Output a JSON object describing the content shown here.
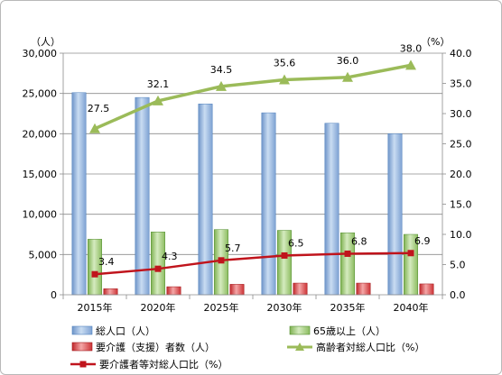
{
  "chart_data": {
    "type": "bar",
    "categories": [
      "2015年",
      "2020年",
      "2025年",
      "2030年",
      "2035年",
      "2040年"
    ],
    "left_axis": {
      "unit": "（人）",
      "ylim": [
        0,
        30000
      ],
      "ticks": [
        "0",
        "5,000",
        "10,000",
        "15,000",
        "20,000",
        "25,000",
        "30,000"
      ]
    },
    "right_axis": {
      "unit": "（%）",
      "ylim": [
        0,
        40
      ],
      "ticks": [
        "0.0",
        "5.0",
        "10.0",
        "15.0",
        "20.0",
        "25.0",
        "30.0",
        "35.0",
        "40.0"
      ]
    },
    "bar_series": [
      {
        "name": "総人口（人）",
        "color": "#8fb0dc",
        "values": [
          25100,
          24500,
          23700,
          22600,
          21300,
          20000
        ]
      },
      {
        "name": "65歳以上（人）",
        "color": "#a5cf7f",
        "values": [
          6900,
          7800,
          8100,
          8000,
          7700,
          7500
        ]
      },
      {
        "name": "要介護（支援）者数（人）",
        "color": "#e0585c",
        "values": [
          750,
          1000,
          1300,
          1450,
          1450,
          1350
        ]
      }
    ],
    "line_series": [
      {
        "name": "高齢者対総人口比（%）",
        "color": "#9bbb59",
        "values": [
          27.5,
          32.1,
          34.5,
          35.6,
          36.0,
          38.0
        ],
        "labels": [
          "27.5",
          "32.1",
          "34.5",
          "35.6",
          "36.0",
          "38.0"
        ]
      },
      {
        "name": "要介護者等対総人口比（%）",
        "color": "#c0141c",
        "values": [
          3.4,
          4.3,
          5.7,
          6.5,
          6.8,
          6.9
        ],
        "labels": [
          "3.4",
          "4.3",
          "5.7",
          "6.5",
          "6.8",
          "6.9"
        ]
      }
    ],
    "grid": true,
    "legend_position": "bottom"
  }
}
